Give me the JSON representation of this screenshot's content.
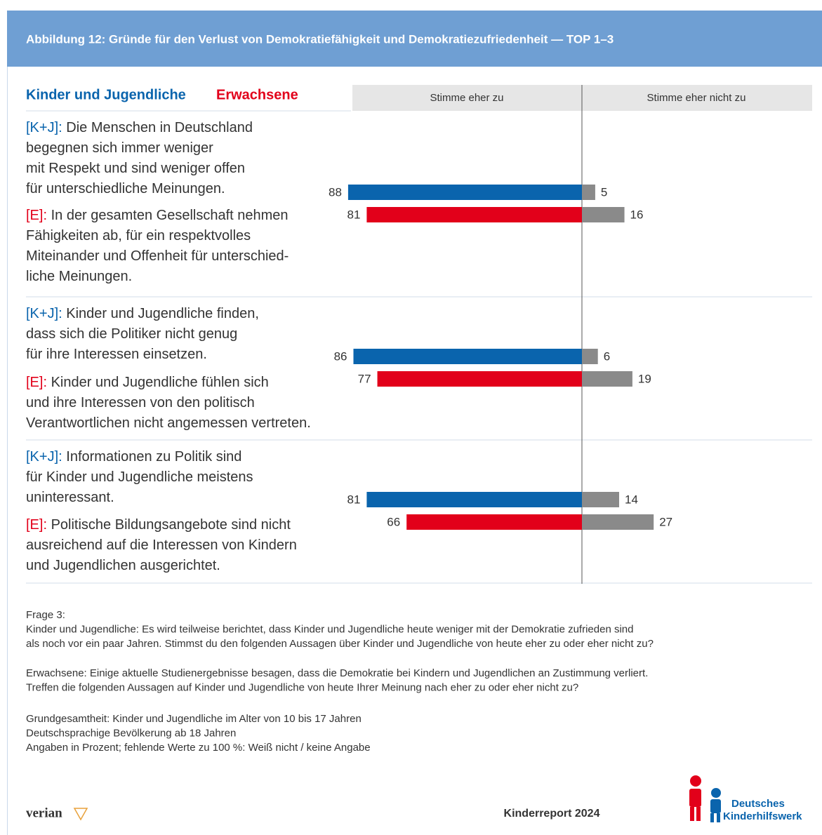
{
  "chart_data": {
    "type": "diverging_bar",
    "title": "Abbildung 12: Gründe für den Verlust von Demokratiefähigkeit und Demokratiezufriedenheit — TOP 1–3",
    "columns": [
      "Stimme eher zu",
      "Stimme eher nicht zu"
    ],
    "disagree_color": "#8a8a8a",
    "series": [
      {
        "name": "Kinder und Jugendliche",
        "prefix": "[K+J]:",
        "color": "#0a64ad",
        "agree": [
          88,
          86,
          81
        ],
        "disagree": [
          5,
          6,
          14
        ]
      },
      {
        "name": "Erwachsene",
        "prefix": "[E]:",
        "color": "#e2001a",
        "agree": [
          81,
          77,
          66
        ],
        "disagree": [
          16,
          19,
          27
        ]
      }
    ],
    "statements": [
      [
        [
          "Die Menschen in Deutschland",
          "begegnen sich immer weniger",
          "mit Respekt und sind weniger offen",
          "für unterschiedliche Meinungen."
        ],
        [
          "In der gesamten Gesellschaft nehmen",
          "Fähigkeiten ab, für ein respektvolles",
          "Miteinander und Offenheit für unterschied-",
          "liche Meinungen."
        ]
      ],
      [
        [
          "Kinder und Jugendliche finden,",
          "dass sich die Politiker nicht genug",
          "für ihre Interessen einsetzen."
        ],
        [
          "Kinder und Jugendliche fühlen sich",
          "und ihre Interessen von den politisch",
          "Verantwortlichen nicht angemessen vertreten."
        ]
      ],
      [
        [
          "Informationen zu Politik sind",
          "für Kinder und Jugendliche meistens",
          "uninteressant."
        ],
        [
          "Politische Bildungsangebote sind nicht",
          "ausreichend auf die Interessen von Kindern",
          "und Jugendlichen ausgerichtet."
        ]
      ]
    ],
    "notes": [
      [
        "Frage 3:",
        "Kinder und Jugendliche: Es wird teilweise berichtet, dass Kinder und Jugendliche heute weniger mit der Demokratie zufrieden sind",
        "als noch vor ein paar Jahren. Stimmst du den folgenden Aussagen über Kinder und Jugendliche von heute eher zu oder eher nicht zu?"
      ],
      [
        "Erwachsene: Einige aktuelle Studienergebnisse besagen, dass die Demokratie bei Kindern und Jugendlichen an Zustimmung verliert.",
        "Treffen die folgenden Aussagen auf Kinder und Jugendliche von heute Ihrer Meinung nach eher zu oder eher nicht zu?"
      ],
      [
        "Grundgesamtheit: Kinder und Jugendliche im Alter von 10 bis 17 Jahren",
        "Deutschsprachige Bevölkerung ab 18 Jahren",
        "Angaben in Prozent; fehlende Werte zu 100 %: Weiß nicht / keine Angabe"
      ]
    ],
    "source": "verian",
    "report": "Kinderreport 2024",
    "publisher": [
      "Deutsches",
      "Kinderhilfswerk"
    ]
  }
}
